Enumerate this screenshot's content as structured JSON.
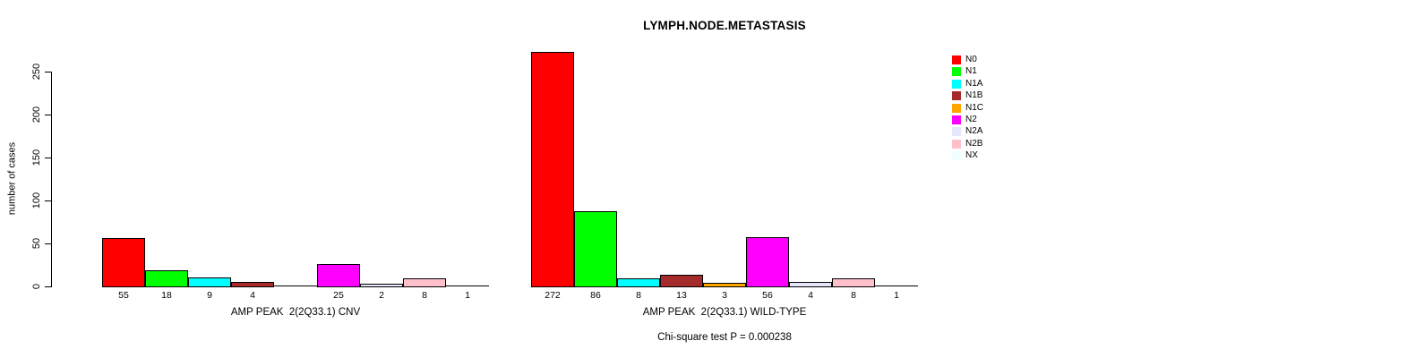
{
  "title": "LYMPH.NODE.METASTASIS",
  "footer": "Chi-square test P = 0.000238",
  "y_axis": {
    "label": "number of cases",
    "ticks": [
      0,
      50,
      100,
      150,
      200,
      250
    ]
  },
  "chart_data": {
    "type": "bar",
    "title": "LYMPH.NODE.METASTASIS",
    "xlabel": "",
    "ylabel": "number of cases",
    "ylim": [
      0,
      250
    ],
    "yticks": [
      0,
      50,
      100,
      150,
      200,
      250
    ],
    "grid": false,
    "legend_position": "right",
    "categories": [
      "N0",
      "N1",
      "N1A",
      "N1B",
      "N1C",
      "N2",
      "N2A",
      "N2B",
      "NX"
    ],
    "colors": [
      "#ff0000",
      "#00ff00",
      "#00ffff",
      "#a52a2a",
      "#ffa500",
      "#ff00ff",
      "#e6e6fa",
      "#ffc0cb",
      "#f0ffff"
    ],
    "groups": [
      {
        "label": "AMP PEAK  2(2Q33.1) CNV",
        "values": [
          55,
          18,
          9,
          4,
          0,
          25,
          2,
          8,
          1
        ],
        "bar_labels": [
          "55",
          "18",
          "9",
          "4",
          "",
          "25",
          "2",
          "8",
          "1"
        ]
      },
      {
        "label": "AMP PEAK  2(2Q33.1) WILD-TYPE",
        "values": [
          272,
          86,
          8,
          13,
          3,
          56,
          4,
          8,
          1
        ],
        "bar_labels": [
          "272",
          "86",
          "8",
          "13",
          "3",
          "56",
          "4",
          "8",
          "1"
        ]
      }
    ],
    "annotation": "Chi-square test P = 0.000238",
    "legend_entries": [
      "N0",
      "N1",
      "N1A",
      "N1B",
      "N1C",
      "N2",
      "N2A",
      "N2B",
      "NX"
    ]
  }
}
